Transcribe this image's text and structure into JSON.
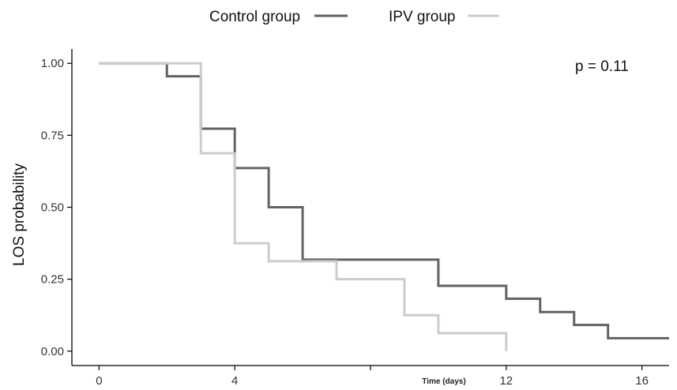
{
  "chart_data": {
    "type": "line",
    "step": true,
    "xlabel": "Time (days)",
    "ylabel": "LOS probability",
    "xlim": [
      -0.8,
      16.8
    ],
    "ylim": [
      -0.05,
      1.05
    ],
    "x_ticks": [
      0,
      4,
      8,
      12,
      16
    ],
    "x_tick_labels": [
      "0",
      "4",
      "",
      "12",
      "16"
    ],
    "y_ticks": [
      0,
      0.25,
      0.5,
      0.75,
      1.0
    ],
    "y_tick_labels": [
      "0.00",
      "0.25",
      "0.50",
      "0.75",
      "1.00"
    ],
    "grid": false,
    "legend_position": "top",
    "annotation": "p = 0.11",
    "series": [
      {
        "name": "Control group",
        "color": "#636363",
        "x": [
          0,
          2,
          3,
          4,
          5,
          6,
          10,
          12,
          13,
          14,
          15,
          16.8
        ],
        "y": [
          1.0,
          0.955,
          0.773,
          0.636,
          0.5,
          0.318,
          0.227,
          0.182,
          0.136,
          0.091,
          0.045,
          0.045
        ]
      },
      {
        "name": "IPV group",
        "color": "#cccccc",
        "x": [
          0,
          3,
          4,
          5,
          7,
          9,
          10,
          12,
          12
        ],
        "y": [
          1.0,
          0.6875,
          0.375,
          0.3125,
          0.25,
          0.125,
          0.0625,
          0.0625,
          0.0
        ]
      }
    ]
  }
}
